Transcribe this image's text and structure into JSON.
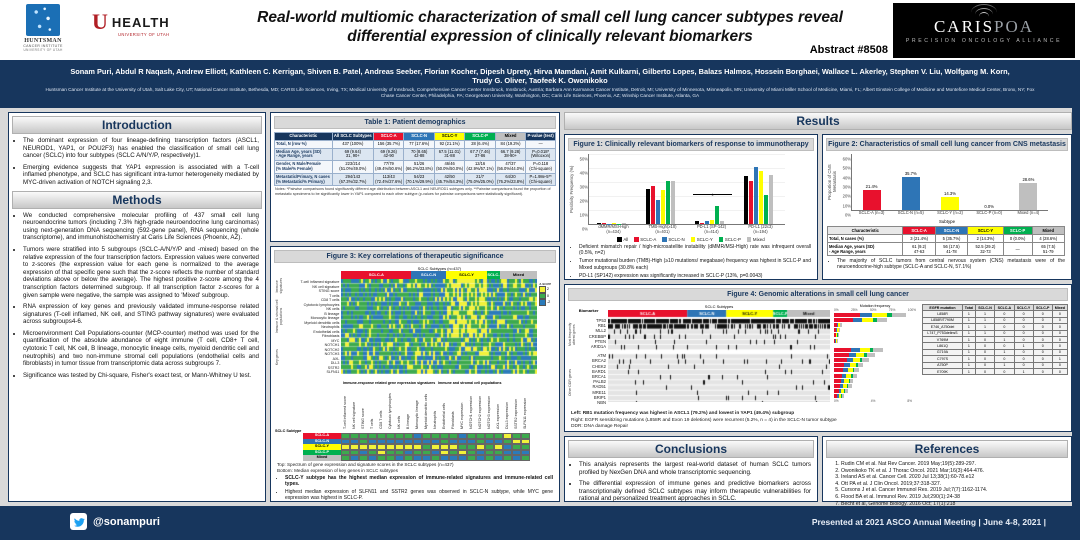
{
  "header": {
    "title_line1": "Real-world multiomic characterization of small cell lung cancer subtypes reveal",
    "title_line2": "differential expression of clinically relevant biomarkers",
    "abstract": "Abstract #8508",
    "huntsman": {
      "l1": "HUNTSMAN",
      "l2": "CANCER INSTITUTE",
      "l3": "UNIVERSITY OF UTAH"
    },
    "uhealth": {
      "u": "U",
      "health": "HEALTH",
      "sub": "UNIVERSITY OF UTAH"
    },
    "caris": {
      "name_main": "CARIS",
      "name_poa": "POA",
      "sub": "PRECISION ONCOLOGY ALLIANCE"
    }
  },
  "authors": "Sonam Puri, Abdul R Naqash, Andrew Elliott, Kathleen C. Kerrigan, Shiven B. Patel, Andreas Seeber, Florian Kocher, Dipesh Uprety, Hirva Mamdani, Amit Kulkarni, Gilberto Lopes, Balazs Halmos, Hossein Borghaei, Wallace L. Akerley, Stephen V. Liu, Wolfgang M. Korn, Trudy G. Oliver, Taofeek K. Owonikoko",
  "affiliations": "Huntsman Cancer Institute at the University of Utah, Salt Lake City, UT; National Cancer Institute, Bethesda, MD; CARIS Life Sciences, Irving, TX; Medical University of Innsbruck, Comprehensive Cancer Center Innsbruck, Innsbruck, Austria; Barbara Ann Karmanos Cancer Institute, Detroit, MI; University of Minnesota, Minneapolis, MN; University of Miami Miller School of Medicine, Miami, FL; Albert Einstein College of Medicine and Montefiore Medical Center, Bronx, NY; Fox Chase Cancer Center, Philadelphia, PA; Georgetown University, Washington, DC; Caris Life Sciences, Phoenix, AZ; Winship Cancer Institute, Atlanta, GA",
  "sections": {
    "introduction": "Introduction",
    "methods": "Methods",
    "results": "Results",
    "conclusions": "Conclusions",
    "references": "References"
  },
  "introduction": {
    "bullets": [
      "The dominant expression of four lineage-defining transcription factors (ASCL1, NEUROD1, YAP1, or POU2F3) has enabled the classification of small cell lung cancer (SCLC) into four subtypes (SCLC A/N/Y/P, respectively)1.",
      "Emerging evidence suggests that YAP1 expression is associated with a T-cell inflamed phenotype, and SCLC has significant intra-tumor heterogeneity mediated by MYC-driven activation of NOTCH signaling 2,3."
    ]
  },
  "methods": {
    "bullets": [
      "We conducted comprehensive molecular profiling of 437 small cell lung neuroendocrine tumors (including 7.3% high-grade neuroendocrine lung carcinomas) using next-generation DNA sequencing (592-gene panel), RNA sequencing (whole transcriptome), and immunohistochemistry at Caris Life Sciences (Phoenix, AZ).",
      "Tumors were stratified into 5 subgroups (SCLC-A/N/Y/P and -mixed) based on the relative expression of the four transcription factors. Expression values were converted to z-scores (the expression value for each gene is normalized to the average expression of that specific gene such that the z-score reflects the number of standard deviations above or below the average). The highest positive z-score among the 4 transcription factors determined subgroup. If all transcription factor z-scores for a given sample were negative, the sample was assigned to 'Mixed' subgroup.",
      "RNA expression of key genes and previously validated immune-response related signatures (T-cell inflamed, NK cell, and STING pathway signatures) were evaluated across subgroups4-6.",
      "Microenvironment Cell Populations-counter (MCP-counter) method was used for the quantification of the absolute abundance of eight immune (T cell, CD8+ T cell, cytotoxic T cell, NK cell, B lineage, monocytic lineage cells, myeloid dendritic cell and neutrophils) and two non-immune stromal cell populations (endothelial cells and fibroblasts) in tumor tissue from transcriptomic data across subgroups 7.",
      "Significance was tested by Chi-square, Fisher's exact test, or Mann-Whitney U test."
    ]
  },
  "table1": {
    "title": "Table 1: Patient demographics",
    "headers": [
      "Characteristic",
      "All SCLC Subtypes",
      "SCLC-A",
      "SCLC-N",
      "SCLC-Y",
      "SCLC-P",
      "Mixed",
      "P-value (test)"
    ],
    "rows": [
      [
        "Total, N (row %)",
        "437 (100%)",
        "156 (35.7%)",
        "77 (17.6%)",
        "92 (21.1%)",
        "28 (6.4%)",
        "84 (19.2%)",
        "—"
      ],
      [
        "Median Age, years (SD)\n- Age Range, years",
        "69 (9.64)\n31, 90+",
        "69 (9.26)\n42-90",
        "70 (8.65)\n42-88",
        "67.5 (11.01)\n31-88",
        "67.7 (7.46)\n37-86",
        "66.7 (9.28)\n38-90+",
        "P=0.018*\n(Wilcoxon)"
      ],
      [
        "Gender, N Male/Female\n(% Male/% Female)",
        "223/214\n(51.0%/49.0%)",
        "77/79\n(49.4%/50.6%)",
        "51/26\n(66.2%/33.8%)",
        "46/46\n(50.0%/50.0%)",
        "12/16\n(42.9%/57.1%)",
        "47/37\n(56.0%/44.0%)",
        "P=0.118\n(Chi-square)"
      ],
      [
        "Metastatic/Primary, N cases\n(% Metastatic/% Primary)",
        "294/143\n(67.3%/32.7%)",
        "113/43\n(72.4%/27.6%)",
        "54/23\n(70.1%/29.9%)",
        "42/50\n(45.7%/54.3%)",
        "21/7\n(75.0%/25.0%)",
        "64/20\n(76.2%/23.8%)",
        "P=1.98e-5**\n(Chi-square)"
      ]
    ],
    "notes": "Notes: *Pairwise comparisons found significantly different age distribution between ASCL1 and NEUROD1 subtypes only. **Pairwise comparisons found the proportion of metastatic specimens to be significantly lower in YAP1 compared to each other subtype (p-values for pairwise comparisons were statistically significant)."
  },
  "figure1": {
    "title": "Figure 1: Clinically relevant biomarkers of response to immunotherapy",
    "ylabel": "Positivity Frequency (%)",
    "yticks": [
      "50%",
      "40%",
      "30%",
      "20%",
      "10%",
      "0%"
    ],
    "categories": [
      "dMMR/MSI-High\n(n=434)",
      "TMB-High(≥10)\n(n=401)",
      "PD-L1 (SP-142)\n(n=414)",
      "PD-L1 (22c3)\n(n=194)"
    ],
    "legend": [
      "All",
      "SCLC-A",
      "SCLC-N",
      "SCLC-Y",
      "SCLC-P",
      "Mixed"
    ],
    "bullets": [
      "Deficient mismatch repair / high-microsatellite instability (dMMR/MSI-High) rate was infrequent overall (0.5%, n=2)",
      "Tumor mutational burden (TMB)-High (≥10 mutations/ megabase) frequency was highest in SCLC-P and Mixed subgroups (30.8% each)",
      "PD-L1 (SP142) expression was significantly increased in SCLC-P (13%, p=0.0043)"
    ]
  },
  "figure2": {
    "title": "Figure 2: Characteristics of small cell lung cancer from CNS metastasis",
    "ylabel": "Proportion of CNS Metastasis",
    "xlabel": "Subtype",
    "yticks": [
      "60%",
      "50%",
      "40%",
      "30%",
      "20%",
      "10%",
      "0%"
    ],
    "categories": [
      "SCLC-A (n=3)",
      "SCLC-N (n=5)",
      "SCLC-Y (n=2)",
      "SCLC-P (n=0)",
      "Mixed (n=4)"
    ],
    "value_labels": [
      "21.4%",
      "35.7%",
      "14.3%",
      "0.0%",
      "28.6%"
    ],
    "table_headers": [
      "Characteristic",
      "SCLC-A",
      "SCLC-N",
      "SCLC-Y",
      "SCLC-P",
      "Mixed"
    ],
    "table_rows": [
      [
        "Total, N cases (%)",
        "3 (21.4%)",
        "5 (35.7%)",
        "2 (14.3%)",
        "0 (0.0%)",
        "4 (28.6%)"
      ],
      [
        "Median Age, years (SD)\n- Age Range, years",
        "61 (9.2)\n47-63",
        "56 (17.5)\n41-78",
        "52.5 (29.2)\n32-73",
        "—",
        "65 (7.5)\n51-79"
      ]
    ],
    "bullet": "The majority of SCLC tumors from central nervous system (CNS) metastasis were of the neuroendocrine-high subtype (SCLC-A and SCLC-N, 57.1%)"
  },
  "figure3": {
    "title": "Figure 3: Key correlations of therapeutic significance",
    "subtype_bar_title": "SCLC Subtypes (n=437)",
    "subtypes": [
      "SCLC-A",
      "SCLC-N",
      "SCLC-Y",
      "SCLC-P",
      "Mixed"
    ],
    "row_groups": [
      "Immune signatures",
      "Immune & stromal cell populations",
      "Key genes"
    ],
    "rows": [
      "T-cell inflamed signature",
      "NK cell signature",
      "STING score",
      "T cells",
      "CD8 T cells",
      "Cytotoxic lymphocytes",
      "NK cells",
      "B lineage",
      "Monocytic lineage",
      "Myeloid dendritic cells",
      "Neutrophils",
      "Endothelial cells",
      "Fibroblasts",
      "MYC",
      "NOTCH1",
      "NOTCH2",
      "NOTCH3",
      "AXL",
      "DLL3",
      "SSTR2",
      "SLFN11"
    ],
    "legend_title": "z-score",
    "legend_items": [
      "2",
      "0",
      "-2"
    ],
    "matrix_group1": "Immune-response related gene expression signatures",
    "matrix_group2": "Immune and stromal cell populations",
    "matrix_col_labels": [
      "T-cell inflamed score",
      "NK cell signature",
      "STING score",
      "T cells",
      "CD8 T cells",
      "Cytotoxic lymphocytes",
      "NK cells",
      "B lineage",
      "Monocytic lineage",
      "Myeloid dendritic cells",
      "Neutrophils",
      "Endothelial cells",
      "Fibroblasts",
      "MYC expression",
      "NOTCH1 expression",
      "NOTCH2 expression",
      "NOTCH3 expression",
      "AXL expression",
      "DLL3 expression",
      "SSTR2 expression",
      "SLFN11 expression"
    ],
    "matrix_row_header": "SCLC Subtype",
    "matrix": [
      [
        "g",
        "g",
        "g",
        "g",
        "g",
        "g",
        "g",
        "g",
        "b",
        "g",
        "g",
        "g",
        "g",
        "b",
        "g",
        "g",
        "g",
        "g",
        "y",
        "g",
        "g"
      ],
      [
        "b",
        "b",
        "g",
        "b",
        "b",
        "b",
        "b",
        "b",
        "b",
        "b",
        "b",
        "g",
        "b",
        "b",
        "b",
        "g",
        "b",
        "b",
        "g",
        "y",
        "y"
      ],
      [
        "y",
        "y",
        "y",
        "y",
        "y",
        "y",
        "y",
        "y",
        "y",
        "g",
        "y",
        "y",
        "y",
        "g",
        "g",
        "y",
        "g",
        "y",
        "b",
        "g",
        "g"
      ],
      [
        "g",
        "g",
        "b",
        "g",
        "y",
        "g",
        "g",
        "b",
        "g",
        "g",
        "b",
        "y",
        "g",
        "y",
        "g",
        "b",
        "g",
        "g",
        "b",
        "b",
        "b"
      ],
      [
        "g",
        "b",
        "g",
        "b",
        "g",
        "g",
        "b",
        "g",
        "b",
        "b",
        "g",
        "b",
        "b",
        "b",
        "g",
        "b",
        "g",
        "b",
        "g",
        "b",
        "g"
      ]
    ],
    "top_caption": "Top: Spectrum of gene expression and signature scores in the SCLC subtypes (n=437)",
    "bottom_caption": "Bottom: Median expression of key genes in SCLC subtypes",
    "bullets": [
      "SCLC-Y subtype has the highest median expression of immune-related signatures and immune-related cell types.",
      "Highest median expression of SLFN11 and SSTR2 genes was observed in SCLC-N subtype, while MYC gene expression was highest in SCLC-P."
    ]
  },
  "figure4": {
    "title": "Figure 4: Genomic alterations in small cell lung cancer",
    "oncoprint_header": "SCLC Subtypes",
    "biomarker_header": "Biomarker",
    "group1_label": "Most frequently altered genes",
    "group2_label": "Other DDR genes",
    "freq_title": "Mutation frequency",
    "freq_axis_top": [
      "0%",
      "25%",
      "50%",
      "75%",
      "100%"
    ],
    "freq_axis_bottom": [
      "0%",
      "4%",
      "8%"
    ],
    "genes_top": [
      {
        "name": "TP53",
        "freq": 92
      },
      {
        "name": "RB1",
        "freq": 68
      },
      {
        "name": "MLL2",
        "freq": 10
      },
      {
        "name": "CREBBP",
        "freq": 8
      },
      {
        "name": "PTEN",
        "freq": 6
      },
      {
        "name": "ARID1A",
        "freq": 5
      }
    ],
    "genes_ddr": [
      {
        "name": "ATM",
        "freq": 5.0
      },
      {
        "name": "BRCA2",
        "freq": 4.2
      },
      {
        "name": "CHEK2",
        "freq": 3.6
      },
      {
        "name": "BARD1",
        "freq": 3.0
      },
      {
        "name": "BRCA1",
        "freq": 2.6
      },
      {
        "name": "PALB2",
        "freq": 2.4
      },
      {
        "name": "RAD51",
        "freq": 2.0
      },
      {
        "name": "MRE11",
        "freq": 1.8
      },
      {
        "name": "BRIP1",
        "freq": 1.4
      },
      {
        "name": "NBN",
        "freq": 1.0
      }
    ],
    "rb1_by_subtype": [
      0.79,
      0.7,
      0.49,
      0.6,
      0.68
    ],
    "egfr_table": {
      "headers": [
        "EGFR mutation",
        "Total",
        "SCLC-N",
        "SCLC-A",
        "SCLC-Y",
        "SCLC-P",
        "Mixed"
      ],
      "rows": [
        [
          "L858R",
          "1",
          "1",
          "0",
          "0",
          "0",
          "0"
        ],
        [
          "L858R/T790M",
          "1",
          "1",
          "0",
          "0",
          "0",
          "0"
        ],
        [
          "E746_A750del",
          "1",
          "1",
          "0",
          "0",
          "0",
          "0"
        ],
        [
          "L747_P753delinsS",
          "1",
          "1",
          "0",
          "0",
          "0",
          "0"
        ],
        [
          "V769M",
          "1",
          "0",
          "1",
          "0",
          "0",
          "0"
        ],
        [
          "L861Q",
          "1",
          "0",
          "0",
          "1",
          "0",
          "0"
        ],
        [
          "G719A",
          "1",
          "0",
          "1",
          "0",
          "0",
          "0"
        ],
        [
          "C797S",
          "1",
          "0",
          "0",
          "0",
          "0",
          "1"
        ],
        [
          "A750P",
          "1",
          "0",
          "1",
          "0",
          "0",
          "0"
        ],
        [
          "E709K",
          "1",
          "0",
          "0",
          "1",
          "0",
          "0"
        ]
      ]
    },
    "captions": [
      "Left: RB1 mutation frequency was highest in ASCL1 (79.2%) and lowest in YAP1 (49.4%) subgroup",
      "Right: EGFR sensitizing mutations (L858R and Exon 19 deletions) were recurrent (5.2%, n = 4) in the SCLC-N tumor subtype",
      "DDR: DNA damage Repair"
    ]
  },
  "conclusions": {
    "bullets": [
      "This analysis represents the largest real-world dataset of human SCLC tumors profiled by NexGen DNA and whole transcriptomic sequencing.",
      "The differential expression of immune genes and predictive biomarkers across transcriptionally defined SCLC subtypes may inform therapeutic vulnerabilities for rational and personalized treatment approaches in SCLC."
    ]
  },
  "references": {
    "items": [
      "Rudin CM et al. Nat Rev Cancer. 2019 May;19(5):289-297.",
      "Owonikoko TK et al. J Thorac Oncol. 2021 Mar;16(3):464-476.",
      "Ireland AS et al. Cancer Cell. 2020 Jul 13;38(1):60-78.e12",
      "Ott PA et al. J Clin Oncol. 2019;37:318-327.",
      "Cursons J et al. Cancer Immunol Res. 2019 Jul;7(7):1162-1174.",
      "Flood BA et al. Immunol Rev. 2019 Jul;290(1):24-38",
      "Becht et al, Genome Biology. 2016 Oct; 17(1):218"
    ]
  },
  "footer": {
    "twitter": "@sonampuri",
    "presented": "Presented at 2021 ASCO Annual Meeting | June 4-8, 2021 |"
  },
  "colors": {
    "navy": "#17365d",
    "page_bg": "#d9d9d9",
    "sclc_a": "#e8112d",
    "sclc_n": "#2e75b6",
    "sclc_y": "#ffff00",
    "sclc_p": "#00b050",
    "mixed": "#bfbfbf",
    "all": "#000000",
    "heat_green": "#3daa4e",
    "heat_blue": "#2b7bba",
    "heat_yellow": "#f2f23a",
    "twitter_blue": "#1da1f2"
  },
  "subtype_fractions": [
    0.357,
    0.176,
    0.211,
    0.064,
    0.192
  ],
  "chart_data": [
    {
      "type": "bar",
      "title": "Figure 1: Clinically relevant biomarkers of response to immunotherapy",
      "categories": [
        "dMMR/MSI-High (n=434)",
        "TMB-High(>=10) (n=401)",
        "PD-L1 (SP-142) (n=414)",
        "PD-L1 (22c3) (n=194)"
      ],
      "series": [
        {
          "name": "All",
          "values": [
            0.5,
            25,
            2,
            34
          ]
        },
        {
          "name": "SCLC-A",
          "values": [
            0.5,
            27,
            1,
            31
          ]
        },
        {
          "name": "SCLC-N",
          "values": [
            0.3,
            17,
            2,
            41
          ]
        },
        {
          "name": "SCLC-Y",
          "values": [
            0.6,
            24,
            3,
            38
          ]
        },
        {
          "name": "SCLC-P",
          "values": [
            0,
            30.8,
            13,
            21
          ]
        },
        {
          "name": "Mixed",
          "values": [
            0.5,
            30.8,
            2,
            35
          ]
        }
      ],
      "xlabel": "",
      "ylabel": "Positivity Frequency (%)",
      "ylim": [
        0,
        50
      ],
      "legend_position": "bottom",
      "grid": true
    },
    {
      "type": "bar",
      "title": "Figure 2: Characteristics of small cell lung cancer from CNS metastasis",
      "categories": [
        "SCLC-A (n=3)",
        "SCLC-N (n=5)",
        "SCLC-Y (n=2)",
        "SCLC-P (n=0)",
        "Mixed (n=4)"
      ],
      "values": [
        21.4,
        35.7,
        14.3,
        0.0,
        28.6
      ],
      "xlabel": "Subtype",
      "ylabel": "Proportion of CNS Metastasis",
      "ylim": [
        0,
        60
      ],
      "grid": false
    },
    {
      "type": "heatmap",
      "title": "Figure 3: Key correlations of therapeutic significance",
      "rows": [
        "T-cell inflamed signature",
        "NK cell signature",
        "STING score",
        "T cells",
        "CD8 T cells",
        "Cytotoxic lymphocytes",
        "NK cells",
        "B lineage",
        "Monocytic lineage",
        "Myeloid dendritic cells",
        "Neutrophils",
        "Endothelial cells",
        "Fibroblasts",
        "MYC",
        "NOTCH1",
        "NOTCH2",
        "NOTCH3",
        "AXL",
        "DLL3",
        "SSTR2",
        "SLFN11"
      ],
      "columns": "437 SCLC samples grouped by subtype (SCLC-A 35.7%, SCLC-N 17.6%, SCLC-Y 21.1%, SCLC-P 6.4%, Mixed 19.2%)",
      "scale": "z-score (-2 blue, 0 green, +2 yellow)"
    },
    {
      "type": "bar",
      "title": "Figure 4: Mutation frequency (most frequently altered genes, %)",
      "categories": [
        "TP53",
        "RB1",
        "MLL2",
        "CREBBP",
        "PTEN",
        "ARID1A"
      ],
      "values": [
        92,
        68,
        10,
        8,
        6,
        5
      ],
      "xlabel": "Frequency (%)",
      "ylabel": "",
      "ylim": [
        0,
        100
      ]
    },
    {
      "type": "bar",
      "title": "Figure 4: Mutation frequency (other DDR genes, %)",
      "categories": [
        "ATM",
        "BRCA2",
        "CHEK2",
        "BARD1",
        "BRCA1",
        "PALB2",
        "RAD51",
        "MRE11",
        "BRIP1",
        "NBN"
      ],
      "values": [
        5.0,
        4.2,
        3.6,
        3.0,
        2.6,
        2.4,
        2.0,
        1.8,
        1.4,
        1.0
      ],
      "xlabel": "Frequency (%)",
      "ylabel": "",
      "ylim": [
        0,
        8
      ]
    }
  ]
}
